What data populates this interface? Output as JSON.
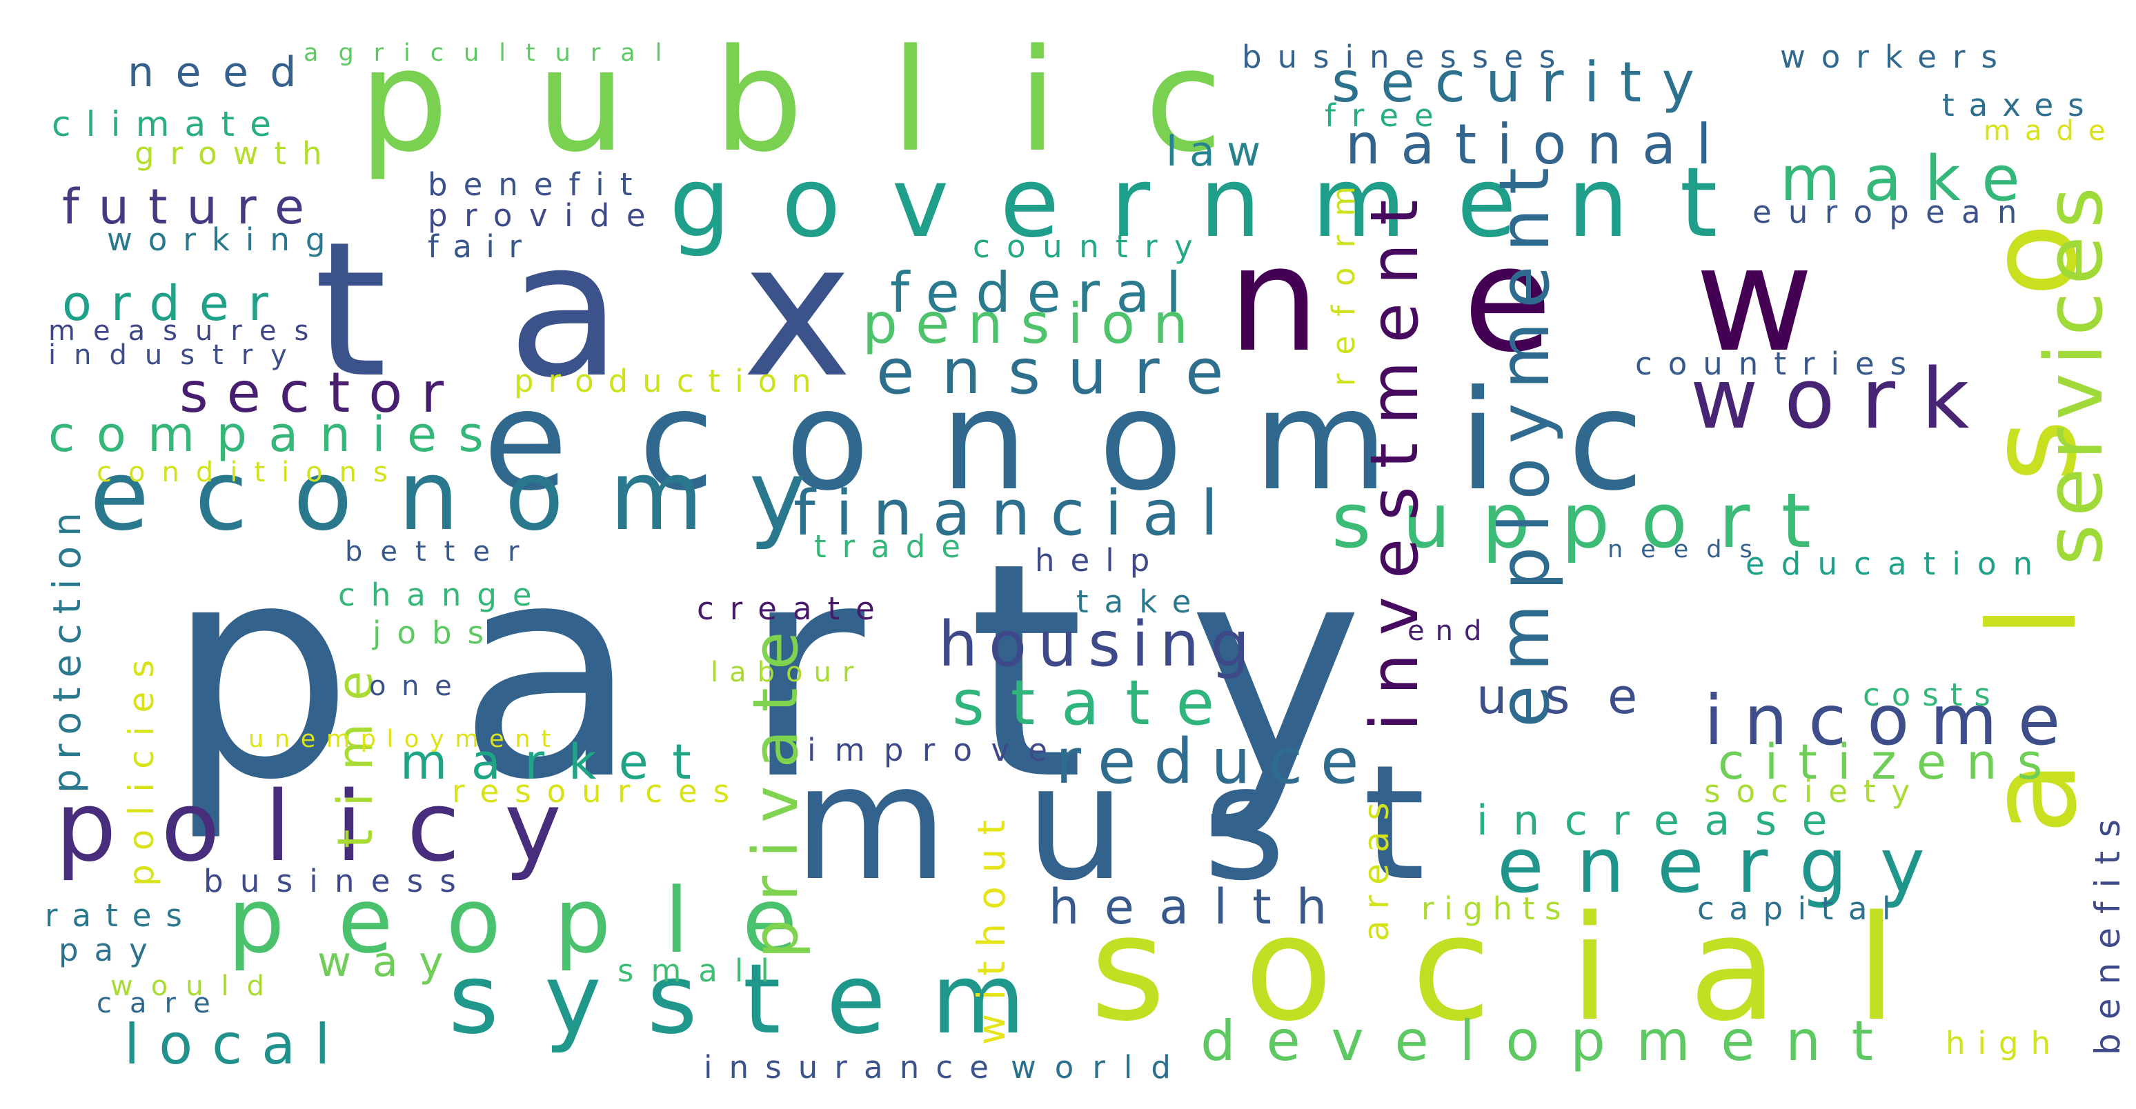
{
  "words": [
    {
      "text": "party",
      "color": "#33638d"
    },
    {
      "text": "public",
      "color": "#7ad151"
    },
    {
      "text": "tax",
      "color": "#3b528b"
    },
    {
      "text": "new",
      "color": "#440154"
    },
    {
      "text": "economic",
      "color": "#31688e"
    },
    {
      "text": "must",
      "color": "#33638d"
    },
    {
      "text": "social",
      "color": "#c2df23"
    },
    {
      "text": "also",
      "color": "#c8e020"
    },
    {
      "text": "government",
      "color": "#1f9e89"
    },
    {
      "text": "economy",
      "color": "#2a788e"
    },
    {
      "text": "policy",
      "color": "#472d7b"
    },
    {
      "text": "people",
      "color": "#4ac16d"
    },
    {
      "text": "system",
      "color": "#1f988b"
    },
    {
      "text": "law",
      "color": "#26828e"
    },
    {
      "text": "security",
      "color": "#2c728e"
    },
    {
      "text": "national",
      "color": "#32648e"
    },
    {
      "text": "make",
      "color": "#35b779"
    },
    {
      "text": "support",
      "color": "#3bbb75"
    },
    {
      "text": "work",
      "color": "#482475"
    },
    {
      "text": "services",
      "color": "#a0da39"
    },
    {
      "text": "financial",
      "color": "#2d708e"
    },
    {
      "text": "ensure",
      "color": "#2e6f8e"
    },
    {
      "text": "federal",
      "color": "#2a7b8e"
    },
    {
      "text": "pension",
      "color": "#4ec36b"
    },
    {
      "text": "housing",
      "color": "#3e4989"
    },
    {
      "text": "state",
      "color": "#2fb47c"
    },
    {
      "text": "income",
      "color": "#3d4e8a"
    },
    {
      "text": "employment",
      "color": "#2f6b8e"
    },
    {
      "text": "investment",
      "color": "#460b5e"
    },
    {
      "text": "reduce",
      "color": "#2f6c8e"
    },
    {
      "text": "citizens",
      "color": "#6ece58"
    },
    {
      "text": "increase",
      "color": "#29af7f"
    },
    {
      "text": "energy",
      "color": "#1f958b"
    },
    {
      "text": "market",
      "color": "#20a486"
    },
    {
      "text": "private",
      "color": "#7fd34e"
    },
    {
      "text": "time",
      "color": "#a8db34"
    },
    {
      "text": "use",
      "color": "#3c4f8a"
    },
    {
      "text": "development",
      "color": "#5ec962"
    },
    {
      "text": "health",
      "color": "#38598c"
    },
    {
      "text": "local",
      "color": "#21918c"
    },
    {
      "text": "way",
      "color": "#6ece58"
    },
    {
      "text": "sector",
      "color": "#481f70"
    },
    {
      "text": "companies",
      "color": "#35b779"
    },
    {
      "text": "order",
      "color": "#1fa088"
    },
    {
      "text": "future",
      "color": "#443983"
    },
    {
      "text": "need",
      "color": "#34618d"
    },
    {
      "text": "agricultural",
      "color": "#5ec962"
    },
    {
      "text": "climate",
      "color": "#29af7f"
    },
    {
      "text": "growth",
      "color": "#b5de2b"
    },
    {
      "text": "benefit",
      "color": "#3b528b"
    },
    {
      "text": "provide",
      "color": "#3e4a89"
    },
    {
      "text": "working",
      "color": "#2a788e"
    },
    {
      "text": "fair",
      "color": "#38588c"
    },
    {
      "text": "measures",
      "color": "#3f4788"
    },
    {
      "text": "industry",
      "color": "#3d4e8a"
    },
    {
      "text": "production",
      "color": "#cde11d"
    },
    {
      "text": "conditions",
      "color": "#d2e21b"
    },
    {
      "text": "protection",
      "color": "#2a788e"
    },
    {
      "text": "better",
      "color": "#38588c"
    },
    {
      "text": "change",
      "color": "#35b779"
    },
    {
      "text": "jobs",
      "color": "#5ec962"
    },
    {
      "text": "one",
      "color": "#3b528b"
    },
    {
      "text": "policies",
      "color": "#d8e219"
    },
    {
      "text": "unemployment",
      "color": "#dde318"
    },
    {
      "text": "business",
      "color": "#3e4a89"
    },
    {
      "text": "rates",
      "color": "#2a788e"
    },
    {
      "text": "pay",
      "color": "#2c728e"
    },
    {
      "text": "would",
      "color": "#a8db34"
    },
    {
      "text": "care",
      "color": "#31688e"
    },
    {
      "text": "small",
      "color": "#3dbc74"
    },
    {
      "text": "insurance",
      "color": "#3b528b"
    },
    {
      "text": "world",
      "color": "#2d708e"
    },
    {
      "text": "businesses",
      "color": "#33638d"
    },
    {
      "text": "free",
      "color": "#29af7f"
    },
    {
      "text": "reform",
      "color": "#cde11d"
    },
    {
      "text": "country",
      "color": "#22a884"
    },
    {
      "text": "trade",
      "color": "#35b779"
    },
    {
      "text": "help",
      "color": "#3e4989"
    },
    {
      "text": "take",
      "color": "#2a788e"
    },
    {
      "text": "create",
      "color": "#481a6c"
    },
    {
      "text": "labour",
      "color": "#a8db34"
    },
    {
      "text": "improve",
      "color": "#3e4989"
    },
    {
      "text": "resources",
      "color": "#d8e219"
    },
    {
      "text": "without",
      "color": "#e5e419"
    },
    {
      "text": "areas",
      "color": "#d2e21b"
    },
    {
      "text": "end",
      "color": "#481f70"
    },
    {
      "text": "rights",
      "color": "#addc30"
    },
    {
      "text": "workers",
      "color": "#31688e"
    },
    {
      "text": "taxes",
      "color": "#2e6e8e"
    },
    {
      "text": "made",
      "color": "#d8e219"
    },
    {
      "text": "european",
      "color": "#3b528b"
    },
    {
      "text": "countries",
      "color": "#38598c"
    },
    {
      "text": "needs",
      "color": "#34618d"
    },
    {
      "text": "education",
      "color": "#1fa088"
    },
    {
      "text": "costs",
      "color": "#34b679"
    },
    {
      "text": "society",
      "color": "#a8db34"
    },
    {
      "text": "capital",
      "color": "#2c728e"
    },
    {
      "text": "benefits",
      "color": "#3e4989"
    },
    {
      "text": "high",
      "color": "#d2e21b"
    }
  ]
}
